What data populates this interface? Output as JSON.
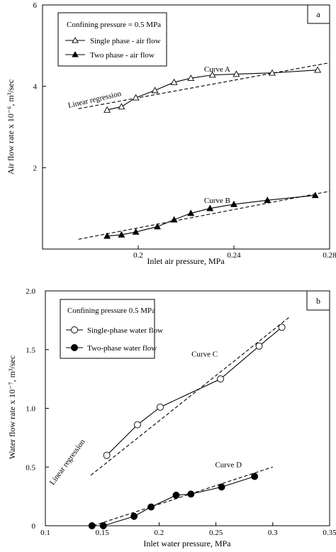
{
  "chart_data": [
    {
      "type": "line",
      "panel_label": "a",
      "xlabel": "Inlet air pressure, MPa",
      "ylabel": "Air flow rate x 10⁻⁶, m³/sec",
      "xlim": [
        0.16,
        0.28
      ],
      "ylim": [
        0,
        6
      ],
      "x_ticks": [
        0.2,
        0.24,
        0.28
      ],
      "x_tick_labels": [
        "0.2",
        "0.24",
        "0.28"
      ],
      "y_ticks": [
        2,
        4,
        6
      ],
      "y_tick_labels": [
        "2",
        "4",
        "6"
      ],
      "legend_title": "Confining pressure = 0.5 MPa",
      "legend_position": "top-left",
      "grid": false,
      "series": [
        {
          "name": "Single phase - air flow",
          "marker": "open-triangle",
          "x": [
            0.187,
            0.193,
            0.199,
            0.207,
            0.215,
            0.222,
            0.231,
            0.241,
            0.256,
            0.275
          ],
          "y": [
            3.42,
            3.5,
            3.72,
            3.9,
            4.1,
            4.2,
            4.28,
            4.3,
            4.33,
            4.4
          ]
        },
        {
          "name": "Two phase - air flow",
          "marker": "filled-triangle",
          "x": [
            0.187,
            0.193,
            0.199,
            0.208,
            0.215,
            0.222,
            0.23,
            0.24,
            0.254,
            0.274
          ],
          "y": [
            0.32,
            0.35,
            0.42,
            0.55,
            0.72,
            0.88,
            1.0,
            1.1,
            1.2,
            1.32
          ]
        }
      ],
      "regression_lines": [
        {
          "x": [
            0.175,
            0.28
          ],
          "y": [
            3.45,
            4.58
          ]
        },
        {
          "x": [
            0.175,
            0.28
          ],
          "y": [
            0.24,
            1.42
          ]
        }
      ],
      "annotations": [
        {
          "text": "Curve A",
          "x": 0.233,
          "y": 4.36
        },
        {
          "text": "Curve B",
          "x": 0.233,
          "y": 1.13
        },
        {
          "text": "Linear regression",
          "x": 0.182,
          "y": 3.62,
          "angle": -13
        }
      ]
    },
    {
      "type": "line",
      "panel_label": "b",
      "xlabel": "Inlet water pressure, MPa",
      "ylabel": "Water flow rate x 10⁻⁷, m³/sec",
      "xlim": [
        0.1,
        0.35
      ],
      "ylim": [
        0,
        2.0
      ],
      "x_ticks": [
        0.1,
        0.15,
        0.2,
        0.25,
        0.3,
        0.35
      ],
      "x_tick_labels": [
        "0.1",
        "0.15",
        "0.2",
        "0.25",
        "0.3",
        "0.35"
      ],
      "y_ticks": [
        0,
        0.5,
        1.0,
        1.5,
        2.0
      ],
      "y_tick_labels": [
        "0",
        "0.5",
        "1.0",
        "1.5",
        "2.0"
      ],
      "legend_title": "Confining pressure 0.5 MPa",
      "legend_position": "top-left",
      "grid": false,
      "series": [
        {
          "name": "Single-phase water flow",
          "marker": "open-circle",
          "x": [
            0.154,
            0.181,
            0.201,
            0.254,
            0.288,
            0.308
          ],
          "y": [
            0.6,
            0.86,
            1.01,
            1.25,
            1.53,
            1.69
          ]
        },
        {
          "name": "Two-phase water flow",
          "marker": "filled-circle",
          "x": [
            0.141,
            0.151,
            0.178,
            0.193,
            0.215,
            0.228,
            0.255,
            0.284
          ],
          "y": [
            0.0,
            0.0,
            0.08,
            0.16,
            0.26,
            0.27,
            0.33,
            0.42
          ]
        }
      ],
      "regression_lines": [
        {
          "x": [
            0.14,
            0.315
          ],
          "y": [
            0.43,
            1.78
          ]
        },
        {
          "x": [
            0.142,
            0.3
          ],
          "y": [
            0.0,
            0.5
          ]
        }
      ],
      "annotations": [
        {
          "text": "Curve C",
          "x": 0.24,
          "y": 1.44
        },
        {
          "text": "Curve D",
          "x": 0.261,
          "y": 0.5
        },
        {
          "text": "Linear regression",
          "x": 0.121,
          "y": 0.53,
          "angle": -54
        }
      ]
    }
  ]
}
